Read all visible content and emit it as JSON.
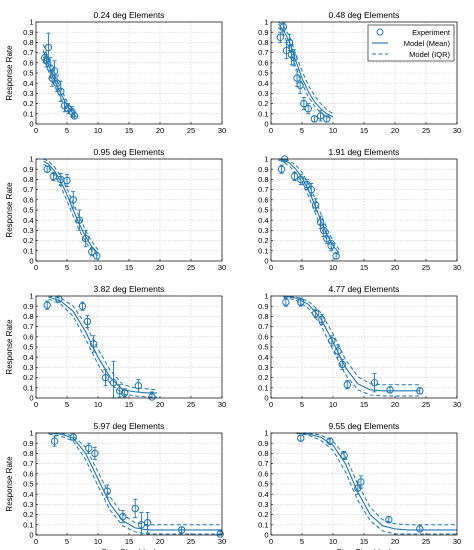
{
  "figure": {
    "legend": {
      "experiment": "Experiment",
      "model_mean": "Model (Mean)",
      "model_iqr": "Model (IQR)"
    }
  },
  "colors": {
    "series": "#1f77b4",
    "grid": "#c8c8c8"
  },
  "chart_data": [
    {
      "type": "line",
      "title": "0.24 deg Elements",
      "xlabel": "",
      "ylabel": "Response Rate",
      "xlim": [
        0,
        30
      ],
      "ylim": [
        0,
        1
      ],
      "xticks": [
        0,
        5,
        10,
        15,
        20,
        25,
        30
      ],
      "yticks": [
        0,
        0.1,
        0.2,
        0.3,
        0.4,
        0.5,
        0.6,
        0.7,
        0.8,
        0.9,
        1
      ],
      "grid": true,
      "experiment": {
        "x": [
          1.4,
          1.7,
          2.0,
          2.3,
          2.6,
          3.0,
          3.4,
          4.0,
          4.6,
          5.2,
          5.8,
          6.2
        ],
        "y": [
          0.65,
          0.62,
          0.75,
          0.55,
          0.45,
          0.52,
          0.4,
          0.32,
          0.18,
          0.15,
          0.12,
          0.08
        ],
        "err": [
          0.05,
          0.06,
          0.14,
          0.1,
          0.08,
          0.1,
          0.08,
          0.1,
          0.06,
          0.05,
          0.05,
          0.03
        ]
      },
      "model_mean": {
        "x": [
          1.2,
          2,
          3,
          4,
          5,
          6,
          6.5
        ],
        "y": [
          0.72,
          0.58,
          0.42,
          0.3,
          0.18,
          0.1,
          0.07
        ]
      },
      "model_iqr_upper": {
        "x": [
          1.2,
          2,
          3,
          4,
          5,
          6,
          6.5
        ],
        "y": [
          0.78,
          0.64,
          0.48,
          0.35,
          0.22,
          0.13,
          0.1
        ]
      },
      "model_iqr_lower": {
        "x": [
          1.2,
          2,
          3,
          4,
          5,
          6,
          6.5
        ],
        "y": [
          0.66,
          0.52,
          0.37,
          0.25,
          0.14,
          0.07,
          0.05
        ]
      }
    },
    {
      "type": "line",
      "title": "0.48 deg Elements",
      "xlabel": "",
      "ylabel": "",
      "xlim": [
        0,
        30
      ],
      "ylim": [
        0,
        1
      ],
      "xticks": [
        0,
        5,
        10,
        15,
        20,
        25,
        30
      ],
      "yticks": [
        0,
        0.1,
        0.2,
        0.3,
        0.4,
        0.5,
        0.6,
        0.7,
        0.8,
        0.9,
        1
      ],
      "grid": true,
      "legend": "top-right",
      "experiment": {
        "x": [
          1.5,
          2.0,
          2.5,
          3.0,
          3.3,
          3.7,
          4.2,
          4.7,
          5.3,
          6.0,
          7.0,
          8.0,
          9.0
        ],
        "y": [
          0.85,
          0.95,
          0.72,
          0.8,
          0.68,
          0.65,
          0.45,
          0.38,
          0.2,
          0.15,
          0.05,
          0.08,
          0.05
        ],
        "err": [
          0.05,
          0.04,
          0.08,
          0.08,
          0.1,
          0.08,
          0.08,
          0.08,
          0.06,
          0.05,
          0.03,
          0.05,
          0.03
        ]
      },
      "model_mean": {
        "x": [
          1.2,
          2,
          3,
          4,
          5,
          6,
          7,
          8,
          9,
          10
        ],
        "y": [
          0.98,
          0.92,
          0.8,
          0.62,
          0.45,
          0.32,
          0.22,
          0.15,
          0.1,
          0.07
        ]
      },
      "model_iqr_upper": {
        "x": [
          1.2,
          2,
          3,
          4,
          5,
          6,
          7,
          8,
          9,
          10
        ],
        "y": [
          1.0,
          0.96,
          0.86,
          0.68,
          0.52,
          0.38,
          0.28,
          0.2,
          0.14,
          0.1
        ]
      },
      "model_iqr_lower": {
        "x": [
          1.2,
          2,
          3,
          4,
          5,
          6,
          7,
          8,
          9,
          10
        ],
        "y": [
          0.95,
          0.88,
          0.74,
          0.56,
          0.4,
          0.27,
          0.18,
          0.11,
          0.07,
          0.05
        ]
      }
    },
    {
      "type": "line",
      "title": "0.95 deg Elements",
      "xlabel": "",
      "ylabel": "Response Rate",
      "xlim": [
        0,
        30
      ],
      "ylim": [
        0,
        1
      ],
      "xticks": [
        0,
        5,
        10,
        15,
        20,
        25,
        30
      ],
      "yticks": [
        0,
        0.1,
        0.2,
        0.3,
        0.4,
        0.5,
        0.6,
        0.7,
        0.8,
        0.9,
        1
      ],
      "grid": true,
      "experiment": {
        "x": [
          1.8,
          2.8,
          4.0,
          5.0,
          6.0,
          7.0,
          8.0,
          9.0,
          9.8
        ],
        "y": [
          0.9,
          0.83,
          0.8,
          0.79,
          0.6,
          0.4,
          0.22,
          0.09,
          0.05
        ],
        "err": [
          0.03,
          0.04,
          0.06,
          0.06,
          0.08,
          0.1,
          0.08,
          0.04,
          0.03
        ]
      },
      "model_mean": {
        "x": [
          1.2,
          2,
          3,
          4,
          5,
          6,
          7,
          8,
          9,
          10
        ],
        "y": [
          0.98,
          0.95,
          0.88,
          0.78,
          0.65,
          0.5,
          0.36,
          0.24,
          0.14,
          0.08
        ]
      },
      "model_iqr_upper": {
        "x": [
          1.2,
          2,
          3,
          4,
          5,
          6,
          7,
          8,
          9,
          10
        ],
        "y": [
          1.0,
          0.98,
          0.92,
          0.83,
          0.71,
          0.57,
          0.43,
          0.3,
          0.19,
          0.11
        ]
      },
      "model_iqr_lower": {
        "x": [
          1.2,
          2,
          3,
          4,
          5,
          6,
          7,
          8,
          9,
          10
        ],
        "y": [
          0.95,
          0.92,
          0.84,
          0.73,
          0.59,
          0.44,
          0.3,
          0.19,
          0.1,
          0.05
        ]
      }
    },
    {
      "type": "line",
      "title": "1.91 deg Elements",
      "xlabel": "",
      "ylabel": "",
      "xlim": [
        0,
        30
      ],
      "ylim": [
        0,
        1
      ],
      "xticks": [
        0,
        5,
        10,
        15,
        20,
        25,
        30
      ],
      "yticks": [
        0,
        0.1,
        0.2,
        0.3,
        0.4,
        0.5,
        0.6,
        0.7,
        0.8,
        0.9,
        1
      ],
      "grid": true,
      "experiment": {
        "x": [
          1.7,
          2.2,
          3.8,
          4.8,
          5.8,
          6.5,
          7.2,
          8.0,
          8.5,
          9.0,
          9.7,
          10.5
        ],
        "y": [
          0.9,
          1.0,
          0.83,
          0.8,
          0.75,
          0.7,
          0.55,
          0.38,
          0.3,
          0.22,
          0.15,
          0.05
        ],
        "err": [
          0.04,
          0.02,
          0.04,
          0.05,
          0.05,
          0.06,
          0.06,
          0.06,
          0.06,
          0.05,
          0.05,
          0.03
        ]
      },
      "model_mean": {
        "x": [
          1.2,
          2,
          3,
          4,
          5,
          6,
          7,
          8,
          9,
          10,
          11
        ],
        "y": [
          1.0,
          0.99,
          0.96,
          0.9,
          0.82,
          0.7,
          0.56,
          0.4,
          0.26,
          0.15,
          0.08
        ]
      },
      "model_iqr_upper": {
        "x": [
          1.2,
          2,
          3,
          4,
          5,
          6,
          7,
          8,
          9,
          10,
          11
        ],
        "y": [
          1.0,
          1.0,
          0.98,
          0.94,
          0.87,
          0.76,
          0.63,
          0.47,
          0.32,
          0.2,
          0.11
        ]
      },
      "model_iqr_lower": {
        "x": [
          1.2,
          2,
          3,
          4,
          5,
          6,
          7,
          8,
          9,
          10,
          11
        ],
        "y": [
          0.99,
          0.97,
          0.93,
          0.86,
          0.77,
          0.64,
          0.49,
          0.34,
          0.21,
          0.11,
          0.05
        ]
      }
    },
    {
      "type": "line",
      "title": "3.82 deg Elements",
      "xlabel": "",
      "ylabel": "Response Rate",
      "xlim": [
        0,
        30
      ],
      "ylim": [
        0,
        1
      ],
      "xticks": [
        0,
        5,
        10,
        15,
        20,
        25,
        30
      ],
      "yticks": [
        0,
        0.1,
        0.2,
        0.3,
        0.4,
        0.5,
        0.6,
        0.7,
        0.8,
        0.9,
        1
      ],
      "grid": true,
      "experiment": {
        "x": [
          1.8,
          3.7,
          7.5,
          8.3,
          9.3,
          11.2,
          12.5,
          13.5,
          14.3,
          16.5,
          18.7
        ],
        "y": [
          0.91,
          0.97,
          0.9,
          0.75,
          0.53,
          0.2,
          0.15,
          0.07,
          0.05,
          0.12,
          0.01
        ],
        "err": [
          0.04,
          0.03,
          0.04,
          0.06,
          0.08,
          0.08,
          0.21,
          0.06,
          0.04,
          0.06,
          0.05
        ]
      },
      "model_mean": {
        "x": [
          2,
          4,
          6,
          8,
          10,
          12,
          14,
          16,
          18,
          19.5
        ],
        "y": [
          0.99,
          0.95,
          0.85,
          0.65,
          0.4,
          0.2,
          0.08,
          0.06,
          0.05,
          0.05
        ]
      },
      "model_iqr_upper": {
        "x": [
          2,
          4,
          6,
          8,
          10,
          12,
          14,
          16,
          18,
          19.5
        ],
        "y": [
          1.0,
          0.98,
          0.9,
          0.72,
          0.48,
          0.27,
          0.13,
          0.1,
          0.09,
          0.08
        ]
      },
      "model_iqr_lower": {
        "x": [
          2,
          4,
          6,
          8,
          10,
          12,
          14,
          16,
          18,
          19.5
        ],
        "y": [
          0.97,
          0.92,
          0.8,
          0.58,
          0.33,
          0.14,
          0.04,
          0.02,
          0.01,
          0.01
        ]
      }
    },
    {
      "type": "line",
      "title": "4.77 deg Elements",
      "xlabel": "",
      "ylabel": "",
      "xlim": [
        0,
        30
      ],
      "ylim": [
        0,
        1
      ],
      "xticks": [
        0,
        5,
        10,
        15,
        20,
        25,
        30
      ],
      "yticks": [
        0,
        0.1,
        0.2,
        0.3,
        0.4,
        0.5,
        0.6,
        0.7,
        0.8,
        0.9,
        1
      ],
      "grid": true,
      "experiment": {
        "x": [
          2.4,
          4.8,
          7.2,
          8.2,
          9.8,
          10.8,
          11.5,
          12.3,
          16.7,
          19.2,
          24.0
        ],
        "y": [
          0.94,
          0.94,
          0.83,
          0.77,
          0.56,
          0.46,
          0.33,
          0.13,
          0.15,
          0.08,
          0.07
        ],
        "err": [
          0.04,
          0.04,
          0.04,
          0.05,
          0.05,
          0.06,
          0.05,
          0.04,
          0.09,
          0.03,
          0.03
        ]
      },
      "model_mean": {
        "x": [
          2,
          4,
          6,
          8,
          10,
          12,
          14,
          16,
          18,
          20,
          22,
          24
        ],
        "y": [
          1.0,
          0.98,
          0.92,
          0.78,
          0.55,
          0.3,
          0.14,
          0.08,
          0.07,
          0.07,
          0.07,
          0.07
        ]
      },
      "model_iqr_upper": {
        "x": [
          2,
          4,
          6,
          8,
          10,
          12,
          14,
          16,
          18,
          20,
          22,
          24
        ],
        "y": [
          1.0,
          0.99,
          0.95,
          0.84,
          0.63,
          0.38,
          0.21,
          0.14,
          0.13,
          0.13,
          0.13,
          0.13
        ]
      },
      "model_iqr_lower": {
        "x": [
          2,
          4,
          6,
          8,
          10,
          12,
          14,
          16,
          18,
          20,
          22,
          24
        ],
        "y": [
          0.99,
          0.96,
          0.88,
          0.72,
          0.47,
          0.23,
          0.08,
          0.03,
          0.02,
          0.02,
          0.02,
          0.02
        ]
      }
    },
    {
      "type": "line",
      "title": "5.97 deg Elements",
      "xlabel": "Step Size (deg)",
      "ylabel": "Response Rate",
      "xlim": [
        0,
        30
      ],
      "ylim": [
        0,
        1
      ],
      "xticks": [
        0,
        5,
        10,
        15,
        20,
        25,
        30
      ],
      "yticks": [
        0,
        0.1,
        0.2,
        0.3,
        0.4,
        0.5,
        0.6,
        0.7,
        0.8,
        0.9,
        1
      ],
      "grid": true,
      "experiment": {
        "x": [
          3.0,
          6.0,
          8.5,
          9.5,
          11.5,
          14.0,
          16.0,
          17.0,
          18.0,
          23.5,
          29.7
        ],
        "y": [
          0.92,
          0.96,
          0.85,
          0.8,
          0.43,
          0.18,
          0.26,
          0.1,
          0.12,
          0.05,
          0.01
        ],
        "err": [
          0.05,
          0.03,
          0.05,
          0.06,
          0.06,
          0.06,
          0.09,
          0.12,
          0.1,
          0.03,
          0.03
        ]
      },
      "model_mean": {
        "x": [
          2,
          4,
          6,
          8,
          10,
          12,
          14,
          16,
          18,
          20,
          24,
          30
        ],
        "y": [
          1.0,
          0.99,
          0.95,
          0.8,
          0.55,
          0.3,
          0.14,
          0.07,
          0.05,
          0.05,
          0.05,
          0.05
        ]
      },
      "model_iqr_upper": {
        "x": [
          2,
          4,
          6,
          8,
          10,
          12,
          14,
          16,
          18,
          20,
          24,
          30
        ],
        "y": [
          1.0,
          1.0,
          0.97,
          0.86,
          0.62,
          0.37,
          0.2,
          0.12,
          0.1,
          0.1,
          0.1,
          0.1
        ]
      },
      "model_iqr_lower": {
        "x": [
          2,
          4,
          6,
          8,
          10,
          12,
          14,
          16,
          18,
          20,
          24,
          30
        ],
        "y": [
          0.99,
          0.97,
          0.92,
          0.74,
          0.48,
          0.24,
          0.09,
          0.03,
          0.01,
          0.01,
          0.01,
          0.01
        ]
      }
    },
    {
      "type": "line",
      "title": "9.55 deg Elements",
      "xlabel": "Step Size (deg)",
      "ylabel": "",
      "xlim": [
        0,
        30
      ],
      "ylim": [
        0,
        1
      ],
      "xticks": [
        0,
        5,
        10,
        15,
        20,
        25,
        30
      ],
      "yticks": [
        0,
        0.1,
        0.2,
        0.3,
        0.4,
        0.5,
        0.6,
        0.7,
        0.8,
        0.9,
        1
      ],
      "grid": true,
      "experiment": {
        "x": [
          4.8,
          9.5,
          11.8,
          14.0,
          14.5,
          19.0,
          24.0
        ],
        "y": [
          0.95,
          0.92,
          0.78,
          0.46,
          0.52,
          0.15,
          0.06
        ],
        "err": [
          0.03,
          0.03,
          0.04,
          0.06,
          0.06,
          0.03,
          0.03
        ]
      },
      "model_mean": {
        "x": [
          4,
          6,
          8,
          10,
          12,
          14,
          16,
          18,
          20,
          22,
          24,
          30
        ],
        "y": [
          1.0,
          0.99,
          0.96,
          0.88,
          0.7,
          0.42,
          0.2,
          0.09,
          0.06,
          0.05,
          0.05,
          0.05
        ]
      },
      "model_iqr_upper": {
        "x": [
          4,
          6,
          8,
          10,
          12,
          14,
          16,
          18,
          20,
          22,
          24,
          30
        ],
        "y": [
          1.0,
          1.0,
          0.98,
          0.92,
          0.77,
          0.5,
          0.27,
          0.15,
          0.11,
          0.1,
          0.1,
          0.1
        ]
      },
      "model_iqr_lower": {
        "x": [
          4,
          6,
          8,
          10,
          12,
          14,
          16,
          18,
          20,
          22,
          24,
          30
        ],
        "y": [
          1.0,
          0.98,
          0.93,
          0.83,
          0.62,
          0.34,
          0.14,
          0.04,
          0.01,
          0.01,
          0.01,
          0.01
        ]
      }
    }
  ]
}
